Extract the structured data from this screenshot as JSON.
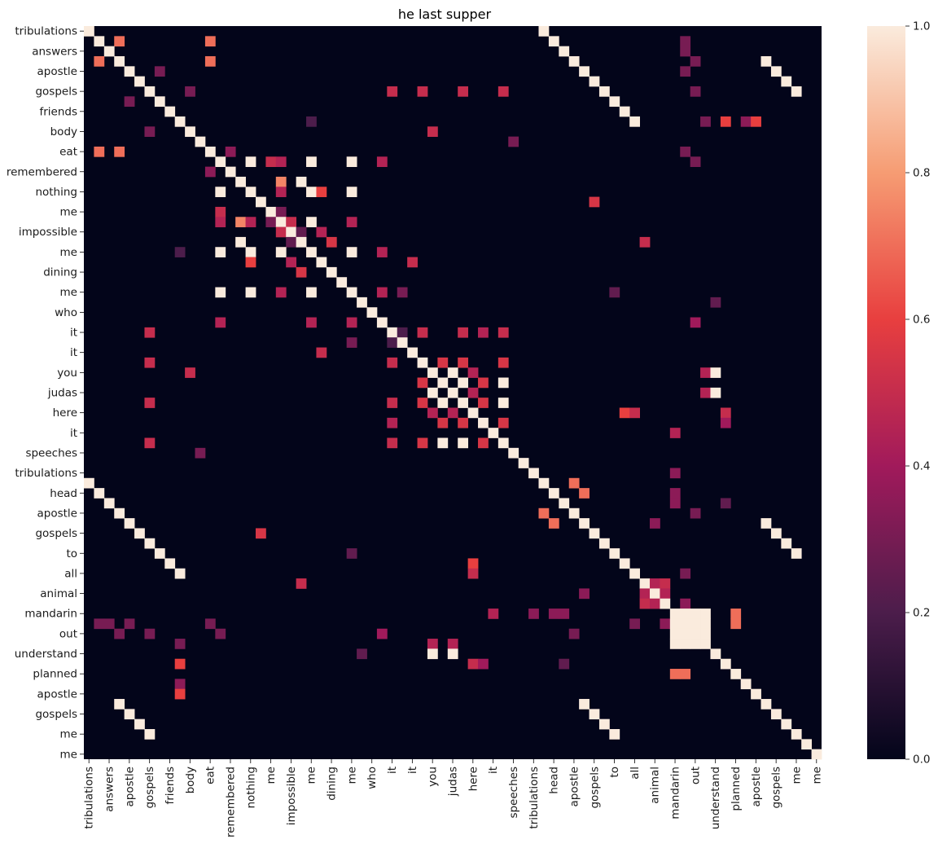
{
  "chart_data": {
    "type": "heatmap",
    "title": "he last supper",
    "xlabel": "",
    "ylabel": "",
    "size": 73,
    "row_tick_labels": [
      "tribulations",
      "answers",
      "apostle",
      "gospels",
      "friends",
      "body",
      "eat",
      "remembered",
      "nothing",
      "me",
      "impossible",
      "me",
      "dining",
      "me",
      "who",
      "it",
      "it",
      "you",
      "judas",
      "here",
      "it",
      "speeches",
      "tribulations",
      "head",
      "apostle",
      "gospels",
      "to",
      "all",
      "animal",
      "mandarin",
      "out",
      "understand",
      "planned",
      "apostle",
      "gospels",
      "me",
      "me"
    ],
    "col_tick_labels": [
      "tribulations",
      "answers",
      "apostle",
      "gospels",
      "friends",
      "body",
      "eat",
      "remembered",
      "nothing",
      "me",
      "impossible",
      "me",
      "dining",
      "me",
      "who",
      "it",
      "it",
      "you",
      "judas",
      "here",
      "it",
      "speeches",
      "tribulations",
      "head",
      "apostle",
      "gospels",
      "to",
      "all",
      "animal",
      "mandarin",
      "out",
      "understand",
      "planned",
      "apostle",
      "gospels",
      "me",
      "me"
    ],
    "colorbar": {
      "range": [
        0.0,
        1.0
      ],
      "ticks": [
        "0.0",
        "0.2",
        "0.4",
        "0.6",
        "0.8",
        "1.0"
      ],
      "colormap": "rocket",
      "stops": [
        "#03051a",
        "#4c1d4b",
        "#a11a5b",
        "#e83f3f",
        "#f69c73",
        "#faebdd"
      ]
    },
    "notes": "Self-similarity matrix of 73 tokens; every other token is labeled. Diagonal = 1.0; sparse off-diagonal blocks of similar tokens.",
    "hot_cells": [
      [
        13,
        16,
        1.0
      ],
      [
        13,
        19,
        0.45
      ],
      [
        16,
        19,
        0.45
      ],
      [
        13,
        26,
        1.0
      ],
      [
        13,
        29,
        0.45
      ],
      [
        16,
        26,
        1.0
      ],
      [
        19,
        26,
        0.45
      ],
      [
        9,
        22,
        0.2
      ],
      [
        13,
        22,
        1.0
      ],
      [
        16,
        22,
        1.0
      ],
      [
        19,
        22,
        1.0
      ],
      [
        22,
        26,
        1.0
      ],
      [
        22,
        29,
        0.45
      ],
      [
        26,
        29,
        0.45
      ],
      [
        15,
        21,
        1.0
      ],
      [
        15,
        19,
        0.75
      ],
      [
        16,
        23,
        0.6
      ],
      [
        13,
        18,
        0.5
      ],
      [
        19,
        20,
        0.5
      ],
      [
        20,
        23,
        0.45
      ],
      [
        35,
        37,
        1.0
      ],
      [
        35,
        41,
        1.0
      ],
      [
        37,
        41,
        1.0
      ],
      [
        33,
        35,
        0.55
      ],
      [
        33,
        37,
        0.55
      ],
      [
        33,
        41,
        0.55
      ],
      [
        35,
        39,
        0.55
      ],
      [
        37,
        39,
        0.55
      ],
      [
        39,
        41,
        0.55
      ],
      [
        30,
        33,
        0.5
      ],
      [
        30,
        37,
        0.5
      ],
      [
        30,
        41,
        0.5
      ],
      [
        30,
        39,
        0.45
      ],
      [
        6,
        30,
        0.5
      ],
      [
        6,
        33,
        0.5
      ],
      [
        6,
        37,
        0.5
      ],
      [
        6,
        41,
        0.5
      ],
      [
        34,
        36,
        1.0
      ],
      [
        34,
        38,
        0.45
      ],
      [
        36,
        38,
        0.45
      ],
      [
        34,
        62,
        1.0
      ],
      [
        36,
        62,
        1.0
      ],
      [
        34,
        61,
        0.45
      ],
      [
        36,
        61,
        0.45
      ],
      [
        38,
        63,
        0.5
      ],
      [
        0,
        45,
        1.0
      ],
      [
        1,
        46,
        1.0
      ],
      [
        2,
        47,
        1.0
      ],
      [
        3,
        48,
        1.0
      ],
      [
        4,
        49,
        1.0
      ],
      [
        5,
        50,
        1.0
      ],
      [
        6,
        51,
        1.0
      ],
      [
        7,
        52,
        1.0
      ],
      [
        8,
        53,
        1.0
      ],
      [
        9,
        54,
        1.0
      ],
      [
        3,
        67,
        1.0
      ],
      [
        4,
        68,
        1.0
      ],
      [
        5,
        69,
        1.0
      ],
      [
        6,
        70,
        1.0
      ],
      [
        49,
        67,
        1.0
      ],
      [
        50,
        68,
        1.0
      ],
      [
        51,
        69,
        1.0
      ],
      [
        52,
        70,
        1.0
      ],
      [
        9,
        63,
        0.6
      ],
      [
        9,
        66,
        0.6
      ],
      [
        9,
        65,
        0.35
      ],
      [
        1,
        3,
        0.7
      ],
      [
        1,
        12,
        0.7
      ],
      [
        3,
        12,
        0.7
      ],
      [
        12,
        14,
        0.35
      ],
      [
        18,
        19,
        0.3
      ],
      [
        20,
        21,
        0.25
      ],
      [
        21,
        24,
        0.55
      ],
      [
        23,
        32,
        0.5
      ],
      [
        10,
        34,
        0.5
      ],
      [
        4,
        7,
        0.3
      ],
      [
        6,
        10,
        0.3
      ],
      [
        30,
        31,
        0.2
      ],
      [
        58,
        60,
        1.0
      ],
      [
        58,
        61,
        1.0
      ],
      [
        59,
        60,
        1.0
      ],
      [
        59,
        61,
        1.0
      ],
      [
        58,
        59,
        1.0
      ],
      [
        60,
        61,
        1.0
      ],
      [
        58,
        64,
        0.7
      ],
      [
        59,
        64,
        0.7
      ],
      [
        2,
        59,
        0.3
      ],
      [
        1,
        59,
        0.3
      ],
      [
        3,
        60,
        0.3
      ],
      [
        4,
        59,
        0.3
      ],
      [
        6,
        60,
        0.3
      ],
      [
        9,
        61,
        0.3
      ],
      [
        12,
        59,
        0.3
      ],
      [
        13,
        60,
        0.3
      ],
      [
        46,
        58,
        0.35
      ],
      [
        47,
        58,
        0.35
      ],
      [
        48,
        60,
        0.3
      ],
      [
        55,
        57,
        0.5
      ],
      [
        55,
        56,
        0.45
      ],
      [
        56,
        57,
        0.45
      ],
      [
        54,
        59,
        0.3
      ],
      [
        57,
        59,
        0.35
      ],
      [
        44,
        58,
        0.35
      ],
      [
        39,
        63,
        0.4
      ],
      [
        26,
        31,
        0.3
      ],
      [
        11,
        42,
        0.3
      ],
      [
        17,
        50,
        0.55
      ],
      [
        21,
        55,
        0.5
      ],
      [
        26,
        52,
        0.25
      ],
      [
        27,
        62,
        0.25
      ],
      [
        38,
        53,
        0.6
      ],
      [
        38,
        54,
        0.5
      ],
      [
        40,
        58,
        0.45
      ],
      [
        29,
        60,
        0.4
      ],
      [
        45,
        48,
        0.7
      ],
      [
        46,
        49,
        0.7
      ],
      [
        49,
        56,
        0.35
      ],
      [
        47,
        63,
        0.25
      ]
    ]
  }
}
